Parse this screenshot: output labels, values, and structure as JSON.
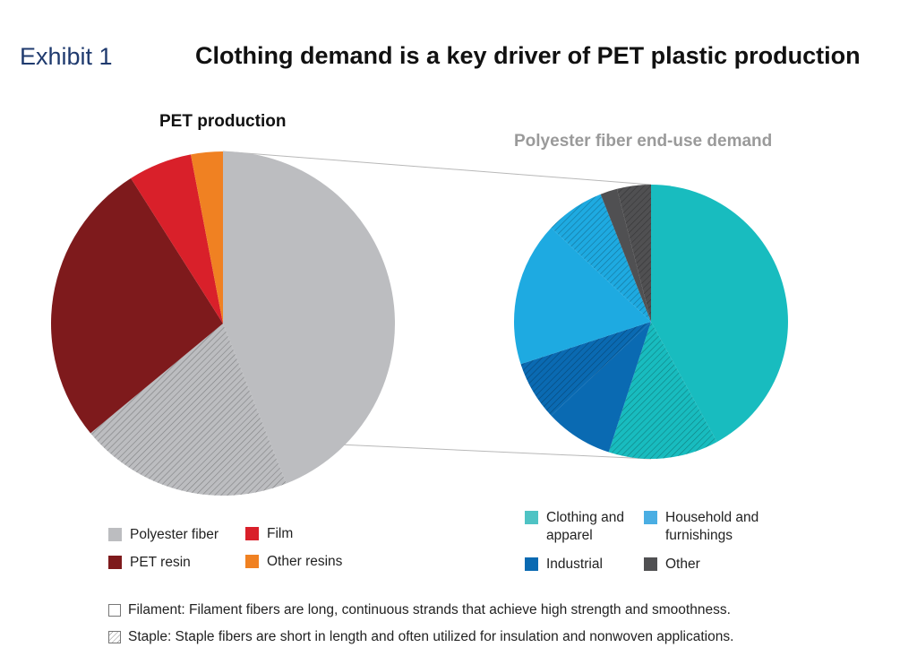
{
  "header": {
    "exhibit": "Exhibit 1",
    "title": "Clothing demand is a key driver of PET plastic production"
  },
  "chart_data": [
    {
      "type": "pie",
      "title": "PET production",
      "slices": [
        {
          "label": "Polyester fiber",
          "filament": 0.44,
          "staple": 0.2,
          "color": "#bcbdc0"
        },
        {
          "label": "PET resin",
          "value": 0.27,
          "color": "#7e1a1c"
        },
        {
          "label": "Film",
          "value": 0.06,
          "color": "#d9202a"
        },
        {
          "label": "Other resins",
          "value": 0.03,
          "color": "#f08122"
        }
      ]
    },
    {
      "type": "pie",
      "title": "Polyester fiber end-use demand",
      "slices": [
        {
          "label": "Clothing and apparel",
          "filament": 0.42,
          "staple": 0.13,
          "color": "#18bcbf"
        },
        {
          "label": "Industrial",
          "filament": 0.08,
          "staple": 0.07,
          "color": "#0a6ab2"
        },
        {
          "label": "Household and furnishings",
          "filament": 0.17,
          "staple": 0.07,
          "color": "#1eaae1"
        },
        {
          "label": "Other",
          "filament": 0.02,
          "staple": 0.04,
          "color": "#505052"
        }
      ]
    }
  ],
  "legend_left": [
    "Polyester fiber",
    "PET resin",
    "Film",
    "Other resins"
  ],
  "legend_right": [
    "Clothing and apparel",
    "Household and furnishings",
    "Industrial",
    "Other"
  ],
  "notes": {
    "filament": "Filament: Filament fibers are long, continuous strands that achieve high strength and smoothness.",
    "staple": "Staple: Staple fibers are short in length and often utilized for insulation and nonwoven applications."
  }
}
